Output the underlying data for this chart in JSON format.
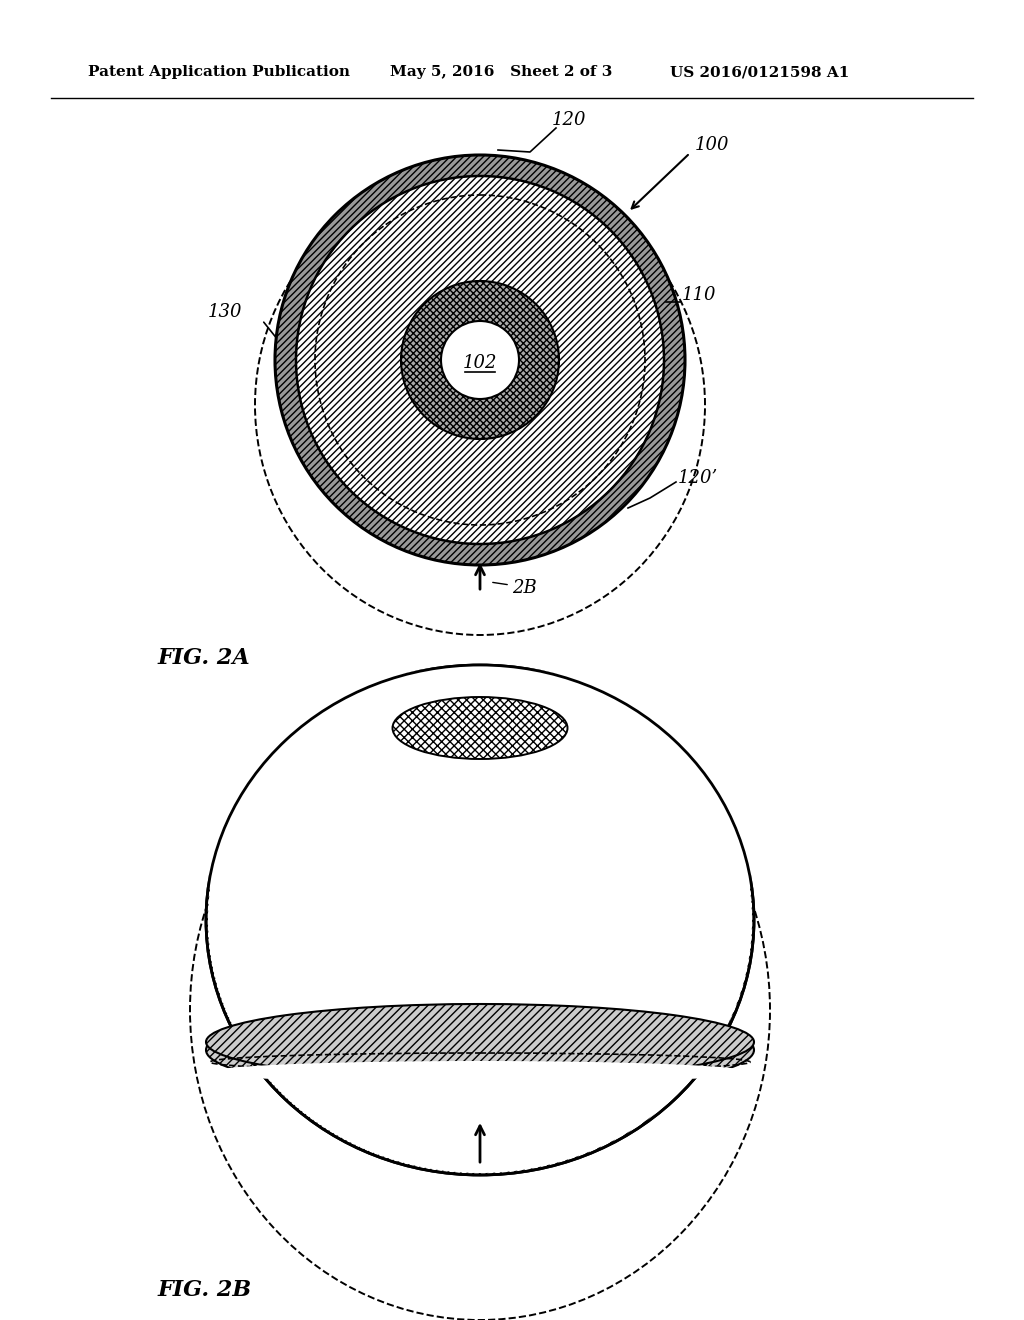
{
  "header_left": "Patent Application Publication",
  "header_mid": "May 5, 2016   Sheet 2 of 3",
  "header_right": "US 2016/0121598 A1",
  "fig2a_label": "FIG. 2A",
  "fig2b_label": "FIG. 2B",
  "ref_100": "100",
  "ref_102": "102",
  "ref_110": "110",
  "ref_120": "120",
  "ref_120p": "120’",
  "ref_130": "130",
  "ref_2B": "2B",
  "bg": "#ffffff",
  "lc": "#000000",
  "gray_fill": "#b0b0b0",
  "light_gray": "#e0e0e0"
}
